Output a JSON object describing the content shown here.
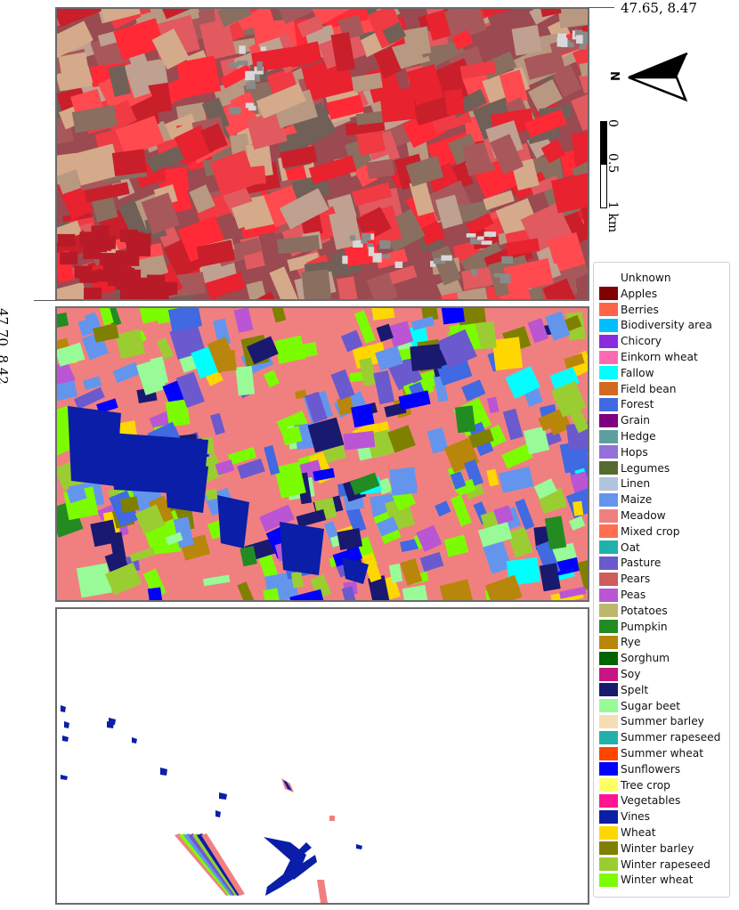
{
  "coords": {
    "top_right": "47.65, 8.47",
    "bottom_left": "47.70, 8.42"
  },
  "north_arrow": {
    "label": "N",
    "icon": "north-arrow-icon"
  },
  "scale_bar": {
    "ticks": [
      "0",
      "0.5",
      "1 km"
    ]
  },
  "panels": [
    {
      "id": "false-color-satellite-image",
      "style": "false-color infrared"
    },
    {
      "id": "crop-label-map",
      "style": "classified"
    },
    {
      "id": "vines-prediction-map",
      "style": "sparse"
    }
  ],
  "legend": {
    "items": [
      {
        "label": "Unknown",
        "color": "#ffffff"
      },
      {
        "label": "Apples",
        "color": "#7f0000"
      },
      {
        "label": "Berries",
        "color": "#ff6347"
      },
      {
        "label": "Biodiversity area",
        "color": "#00bfff"
      },
      {
        "label": "Chicory",
        "color": "#8a2be2"
      },
      {
        "label": "Einkorn wheat",
        "color": "#ff69b4"
      },
      {
        "label": "Fallow",
        "color": "#00ffff"
      },
      {
        "label": "Field bean",
        "color": "#d2691e"
      },
      {
        "label": "Forest",
        "color": "#4169e1"
      },
      {
        "label": "Grain",
        "color": "#800080"
      },
      {
        "label": "Hedge",
        "color": "#5f9ea0"
      },
      {
        "label": "Hops",
        "color": "#9370db"
      },
      {
        "label": "Legumes",
        "color": "#556b2f"
      },
      {
        "label": "Linen",
        "color": "#b0c4de"
      },
      {
        "label": "Maize",
        "color": "#6495ed"
      },
      {
        "label": "Meadow",
        "color": "#f08080"
      },
      {
        "label": "Mixed crop",
        "color": "#ff6f50"
      },
      {
        "label": "Oat",
        "color": "#20b2aa"
      },
      {
        "label": "Pasture",
        "color": "#6a5acd"
      },
      {
        "label": "Pears",
        "color": "#cd5c5c"
      },
      {
        "label": "Peas",
        "color": "#ba55d3"
      },
      {
        "label": "Potatoes",
        "color": "#bdb76b"
      },
      {
        "label": "Pumpkin",
        "color": "#228b22"
      },
      {
        "label": "Rye",
        "color": "#b8860b"
      },
      {
        "label": "Sorghum",
        "color": "#006400"
      },
      {
        "label": "Soy",
        "color": "#c71585"
      },
      {
        "label": "Spelt",
        "color": "#191970"
      },
      {
        "label": "Sugar beet",
        "color": "#98fb98"
      },
      {
        "label": "Summer barley",
        "color": "#f5deb3"
      },
      {
        "label": "Summer rapeseed",
        "color": "#20b2aa"
      },
      {
        "label": "Summer wheat",
        "color": "#ff4500"
      },
      {
        "label": "Sunflowers",
        "color": "#0000ff"
      },
      {
        "label": "Tree crop",
        "color": "#ffff66"
      },
      {
        "label": "Vegetables",
        "color": "#ff1493"
      },
      {
        "label": "Vines",
        "color": "#0a1ea8"
      },
      {
        "label": "Wheat",
        "color": "#ffd700"
      },
      {
        "label": "Winter barley",
        "color": "#808000"
      },
      {
        "label": "Winter rapeseed",
        "color": "#9acd32"
      },
      {
        "label": "Winter wheat",
        "color": "#7cfc00"
      }
    ]
  }
}
